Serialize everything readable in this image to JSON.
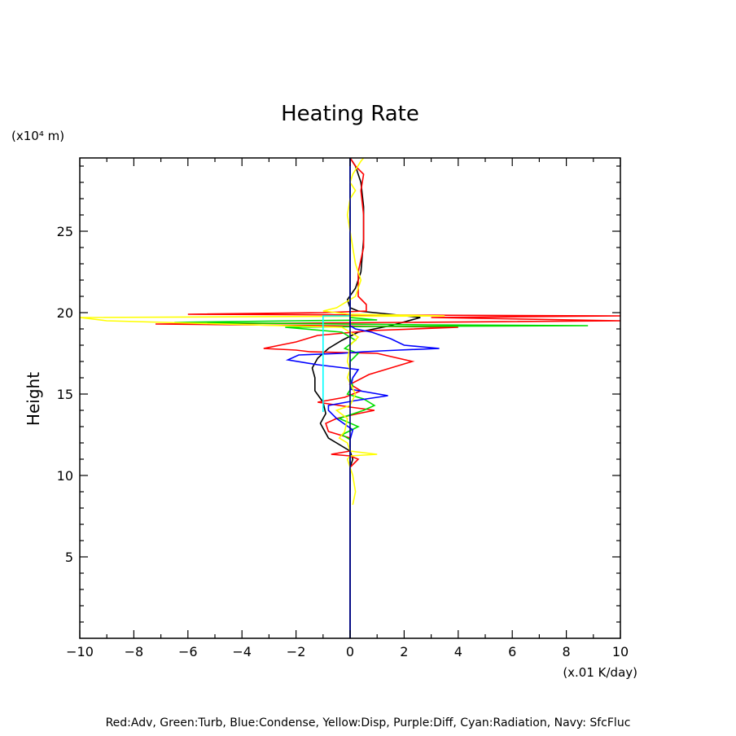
{
  "chart_data": {
    "type": "line",
    "title": "Heating Rate",
    "ylabel": "Height",
    "y_unit": "(x10⁴ m)",
    "x_unit": "(x.01 K/day)",
    "xlim": [
      -10,
      10
    ],
    "ylim": [
      0,
      29.5
    ],
    "x_ticks": [
      -10,
      -8,
      -6,
      -4,
      -2,
      0,
      2,
      4,
      6,
      8,
      10
    ],
    "x_tick_labels": [
      "−10",
      "−8",
      "−6",
      "−4",
      "−2",
      "0",
      "2",
      "4",
      "6",
      "8",
      "10"
    ],
    "y_ticks": [
      5,
      10,
      15,
      20,
      25
    ],
    "y_tick_labels": [
      "5",
      "10",
      "15",
      "20",
      "25"
    ],
    "grid": false,
    "legend_text": "Red:Adv, Green:Turb, Blue:Condense, Yellow:Disp, Purple:Diff, Cyan:Radiation, Navy: SfcFluc",
    "series": [
      {
        "color": "#000000",
        "points": [
          [
            0,
            0
          ],
          [
            0,
            10.5
          ],
          [
            0.1,
            11
          ],
          [
            0,
            11.5
          ],
          [
            -0.8,
            12.3
          ],
          [
            -1.1,
            13.2
          ],
          [
            -0.9,
            13.8
          ],
          [
            -1.0,
            14.5
          ],
          [
            -1.3,
            15.2
          ],
          [
            -1.3,
            16
          ],
          [
            -1.4,
            16.6
          ],
          [
            -1.2,
            17.2
          ],
          [
            -0.8,
            17.8
          ],
          [
            -0.3,
            18.3
          ],
          [
            0.3,
            18.8
          ],
          [
            1.5,
            19.2
          ],
          [
            2.6,
            19.7
          ],
          [
            1.5,
            19.9
          ],
          [
            0.3,
            20.1
          ],
          [
            0,
            20.3
          ],
          [
            -0.1,
            20.8
          ],
          [
            0.2,
            21.5
          ],
          [
            0.4,
            22.5
          ],
          [
            0.5,
            24.5
          ],
          [
            0.5,
            26.5
          ],
          [
            0.4,
            28
          ],
          [
            0.2,
            29
          ],
          [
            0,
            29.5
          ]
        ]
      },
      {
        "color": "#ff0000",
        "points": [
          [
            0,
            0
          ],
          [
            0,
            10.5
          ],
          [
            0.3,
            11
          ],
          [
            0,
            11.2
          ],
          [
            -0.7,
            11.3
          ],
          [
            0,
            11.5
          ],
          [
            0,
            12.3
          ],
          [
            -0.8,
            12.7
          ],
          [
            -0.9,
            13.2
          ],
          [
            -0.5,
            13.5
          ],
          [
            0.3,
            13.8
          ],
          [
            0.9,
            14
          ],
          [
            0,
            14.2
          ],
          [
            -1.2,
            14.5
          ],
          [
            -0.2,
            14.8
          ],
          [
            0.4,
            15.2
          ],
          [
            0,
            15.6
          ],
          [
            0.7,
            16.2
          ],
          [
            2.3,
            17
          ],
          [
            1.0,
            17.5
          ],
          [
            -1.5,
            17.6
          ],
          [
            -2.0,
            17.7
          ],
          [
            -3.2,
            17.8
          ],
          [
            -2.0,
            18.2
          ],
          [
            -1.2,
            18.6
          ],
          [
            0.8,
            18.9
          ],
          [
            4.0,
            19.1
          ],
          [
            -1,
            19.2
          ],
          [
            -7.2,
            19.3
          ],
          [
            2,
            19.4
          ],
          [
            10,
            19.5
          ],
          [
            3,
            19.7
          ],
          [
            10,
            19.8
          ],
          [
            2,
            19.85
          ],
          [
            -6,
            19.9
          ],
          [
            -1,
            20
          ],
          [
            0.6,
            20.1
          ],
          [
            0.6,
            20.5
          ],
          [
            0.3,
            21
          ],
          [
            0.3,
            22.5
          ],
          [
            0.5,
            24
          ],
          [
            0.5,
            26
          ],
          [
            0.4,
            27.5
          ],
          [
            0.5,
            28.5
          ],
          [
            0.2,
            29
          ],
          [
            0,
            29.5
          ]
        ]
      },
      {
        "color": "#00dd00",
        "points": [
          [
            0,
            0
          ],
          [
            0,
            12.2
          ],
          [
            -0.3,
            12.5
          ],
          [
            0.3,
            13
          ],
          [
            -0.4,
            13.5
          ],
          [
            0.5,
            14
          ],
          [
            0.9,
            14.3
          ],
          [
            0.5,
            14.7
          ],
          [
            -0.1,
            15
          ],
          [
            0.1,
            15.5
          ],
          [
            0,
            16
          ],
          [
            0,
            17
          ],
          [
            0.3,
            17.5
          ],
          [
            -0.2,
            17.8
          ],
          [
            0.2,
            18.3
          ],
          [
            -0.3,
            18.8
          ],
          [
            -2.4,
            19.1
          ],
          [
            1,
            19.15
          ],
          [
            8.8,
            19.2
          ],
          [
            3,
            19.25
          ],
          [
            -6.5,
            19.4
          ],
          [
            -2,
            19.5
          ],
          [
            1,
            19.55
          ],
          [
            0,
            19.7
          ],
          [
            0,
            29.5
          ]
        ]
      },
      {
        "color": "#0000ff",
        "points": [
          [
            0,
            0
          ],
          [
            0,
            12.2
          ],
          [
            0.1,
            12.8
          ],
          [
            -0.5,
            13.5
          ],
          [
            -0.8,
            14
          ],
          [
            -0.8,
            14.3
          ],
          [
            0.2,
            14.6
          ],
          [
            1.4,
            14.9
          ],
          [
            0,
            15.3
          ],
          [
            0.1,
            16
          ],
          [
            0.3,
            16.5
          ],
          [
            -1.2,
            16.8
          ],
          [
            -2.3,
            17.1
          ],
          [
            -1.9,
            17.4
          ],
          [
            -0.3,
            17.5
          ],
          [
            0.5,
            17.6
          ],
          [
            1.8,
            17.7
          ],
          [
            3.3,
            17.8
          ],
          [
            2.0,
            18
          ],
          [
            1.5,
            18.4
          ],
          [
            0.8,
            18.8
          ],
          [
            0.2,
            19
          ],
          [
            0,
            19.2
          ],
          [
            0,
            29.5
          ]
        ]
      },
      {
        "color": "#ffff00",
        "points": [
          [
            0.1,
            8.2
          ],
          [
            0.2,
            9
          ],
          [
            0.1,
            10
          ],
          [
            -0.1,
            11
          ],
          [
            0,
            11.2
          ],
          [
            1,
            11.3
          ],
          [
            0,
            11.5
          ],
          [
            -0.1,
            12
          ],
          [
            -0.4,
            12.3
          ],
          [
            -0.2,
            12.7
          ],
          [
            -0.1,
            13.5
          ],
          [
            -0.5,
            14
          ],
          [
            0,
            14.3
          ],
          [
            0.2,
            15
          ],
          [
            -0.1,
            16
          ],
          [
            0,
            16.5
          ],
          [
            -0.1,
            17
          ],
          [
            0,
            18
          ],
          [
            0.3,
            18.5
          ],
          [
            -0.3,
            19.1
          ],
          [
            -9,
            19.5
          ],
          [
            -10,
            19.7
          ],
          [
            3.5,
            19.8
          ],
          [
            0,
            19.9
          ],
          [
            -1,
            20.1
          ],
          [
            -0.5,
            20.3
          ],
          [
            0.2,
            21
          ],
          [
            0.4,
            22
          ],
          [
            0.2,
            23
          ],
          [
            0.1,
            24
          ],
          [
            0,
            25
          ],
          [
            -0.1,
            26
          ],
          [
            0,
            27
          ],
          [
            0.2,
            27.5
          ],
          [
            0,
            28
          ],
          [
            0.1,
            28.5
          ],
          [
            0.4,
            29.3
          ],
          [
            0.5,
            29.5
          ]
        ]
      },
      {
        "color": "#00ffff",
        "points": [
          [
            -1.0,
            13.9
          ],
          [
            -1.0,
            19.8
          ],
          [
            0,
            19.8
          ]
        ]
      },
      {
        "color": "#000080",
        "points": [
          [
            0,
            0
          ],
          [
            0,
            29.5
          ]
        ]
      }
    ]
  }
}
